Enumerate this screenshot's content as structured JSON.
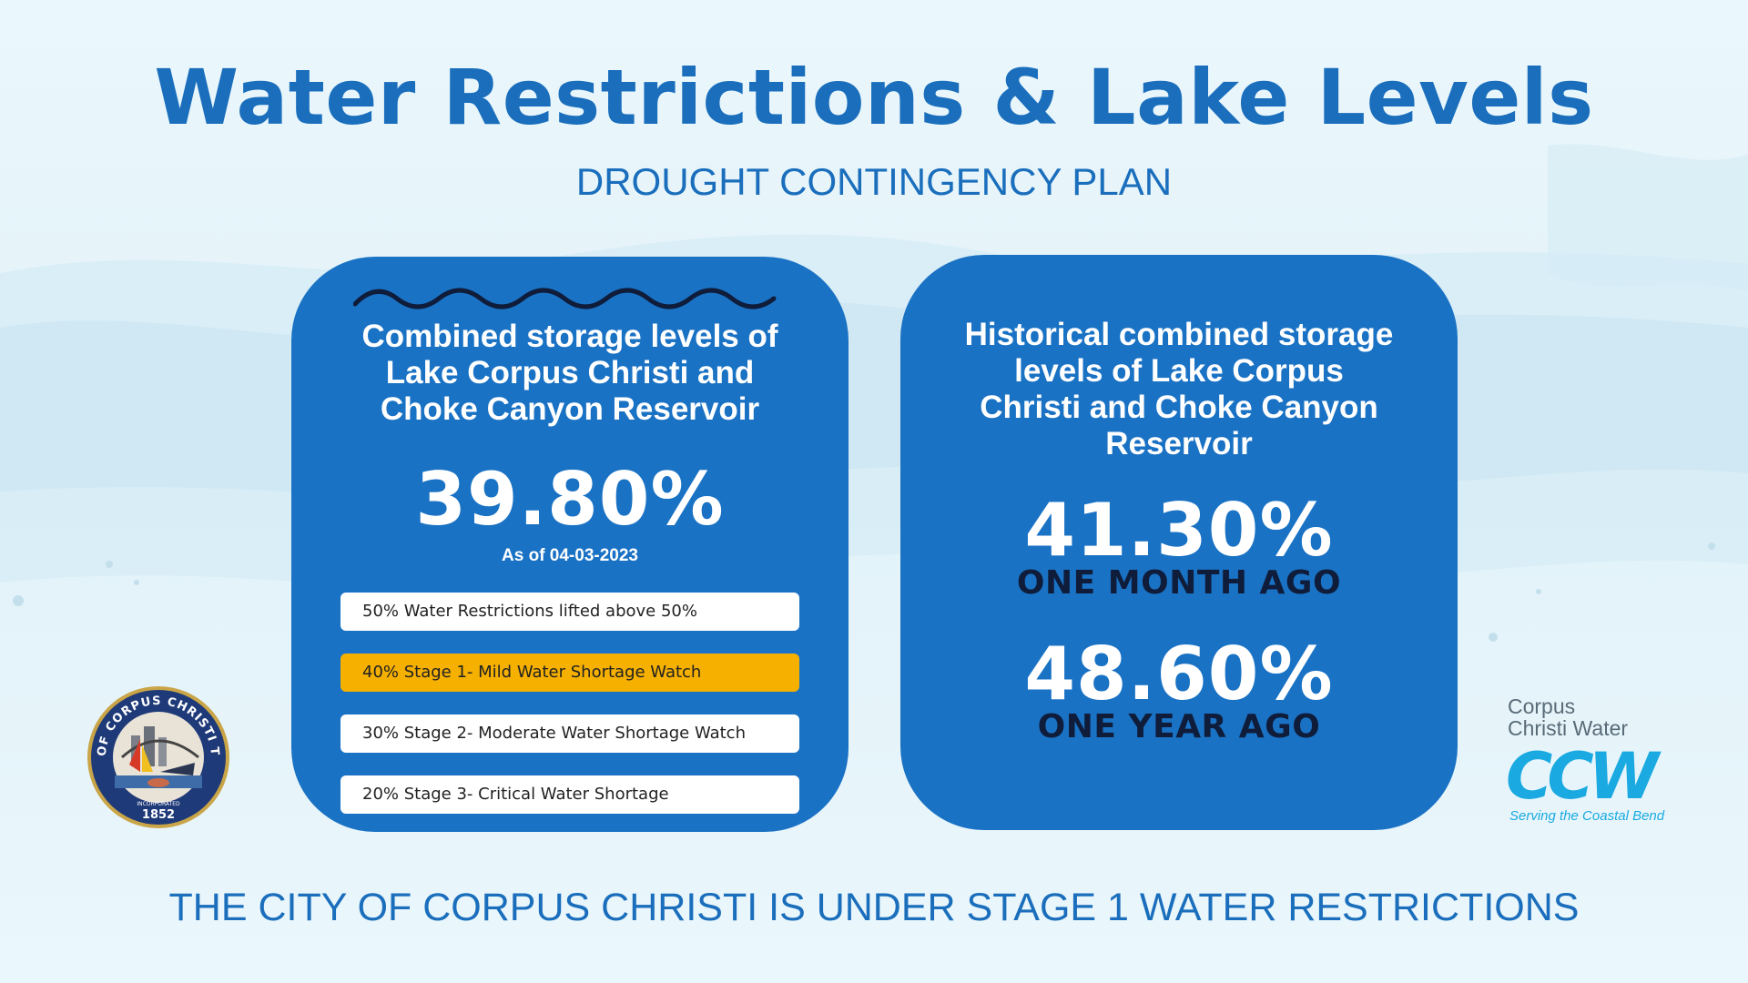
{
  "header": {
    "title": "Water Restrictions & Lake Levels",
    "subtitle": "DROUGHT CONTINGENCY PLAN"
  },
  "current_card": {
    "heading_lines": [
      "Combined storage levels of",
      "Lake Corpus Christi and",
      "Choke Canyon Reservoir"
    ],
    "percentage": "39.80%",
    "as_of": "As of 04-03-2023",
    "stages": [
      {
        "label": "50% Water Restrictions lifted above 50%",
        "active": false
      },
      {
        "label": "40% Stage 1- Mild Water Shortage Watch",
        "active": true
      },
      {
        "label": "30% Stage 2- Moderate Water Shortage Watch",
        "active": false
      },
      {
        "label": "20% Stage 3- Critical Water Shortage",
        "active": false
      }
    ]
  },
  "historical_card": {
    "heading_lines": [
      "Historical combined storage",
      "levels of Lake Corpus",
      "Christi and Choke Canyon",
      "Reservoir"
    ],
    "month_percentage": "41.30%",
    "month_label": "ONE MONTH AGO",
    "year_percentage": "48.60%",
    "year_label": "ONE YEAR AGO"
  },
  "footer": {
    "text": "THE CITY OF CORPUS CHRISTI IS UNDER STAGE 1 WATER RESTRICTIONS"
  },
  "seal": {
    "ring_text": "CITY OF CORPUS CHRISTI TEXAS",
    "year": "1852",
    "incorporated": "INCORPORATED"
  },
  "ccw_logo": {
    "line1": "Corpus",
    "line2": "Christi Water",
    "letters": "CCW",
    "tagline": "Serving the Coastal Bend"
  },
  "colors": {
    "brand_blue": "#1a6ebc",
    "card_blue": "#1a72c4",
    "active_stage": "#f5b000",
    "dark_navy": "#0f1c3a",
    "ccw_cyan": "#1aa9e1"
  }
}
